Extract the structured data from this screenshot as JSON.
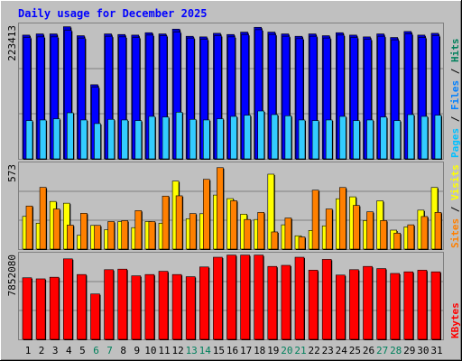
{
  "colors": {
    "background": "#c0c0c0",
    "panel_background": "#c0c0c0",
    "hits": "#00805c",
    "files": "#0080ff",
    "pages": "#00c0ff",
    "visits": "#ffff00",
    "sites": "#ff8000",
    "kbytes": "#ff0000",
    "hits_bar": "#0000ff",
    "files_bar": "#0000ff",
    "pages_bar": "#33ccff",
    "title": "#0000ff",
    "weekend_label": "#00805c",
    "weekday_label": "#000000"
  },
  "chart_data": [
    {
      "type": "bar",
      "title": "Daily usage for December 2025",
      "panel": "hits-files-pages",
      "ymax_label": "223413",
      "ylim": [
        0,
        223413
      ],
      "legend": {
        "pages": "Pages",
        "files": "Files",
        "hits": "Hits",
        "sep": "/"
      },
      "categories": [
        "1",
        "2",
        "3",
        "4",
        "5",
        "6",
        "7",
        "8",
        "9",
        "10",
        "11",
        "12",
        "13",
        "14",
        "15",
        "16",
        "17",
        "18",
        "19",
        "20",
        "21",
        "22",
        "23",
        "24",
        "25",
        "26",
        "27",
        "28",
        "29",
        "30",
        "31"
      ],
      "series": [
        {
          "name": "Hits",
          "values": [
            207000,
            209000,
            209000,
            221000,
            206000,
            124000,
            209000,
            208000,
            207000,
            211000,
            209000,
            217000,
            205000,
            204000,
            210000,
            208000,
            212000,
            220000,
            212000,
            209000,
            205000,
            209000,
            206000,
            211000,
            207000,
            204000,
            209000,
            203000,
            213000,
            207000,
            210000
          ]
        },
        {
          "name": "Files",
          "values": [
            203000,
            204000,
            204000,
            215000,
            202000,
            120000,
            205000,
            204000,
            203000,
            207000,
            206000,
            212000,
            202000,
            200000,
            206000,
            204000,
            208000,
            216000,
            208000,
            205000,
            201000,
            205000,
            202000,
            207000,
            203000,
            200000,
            205000,
            199000,
            209000,
            203000,
            206000
          ]
        },
        {
          "name": "Pages",
          "values": [
            64000,
            65000,
            67000,
            77000,
            65000,
            59000,
            66000,
            65000,
            64000,
            71000,
            70000,
            78000,
            66000,
            65000,
            67000,
            71000,
            73000,
            80000,
            74000,
            72000,
            65000,
            64000,
            65000,
            71000,
            64000,
            65000,
            70000,
            64000,
            74000,
            71000,
            73000
          ]
        }
      ]
    },
    {
      "type": "bar",
      "panel": "visits-sites",
      "ymax_label": "573",
      "ylim": [
        0,
        573
      ],
      "legend": {
        "sites": "Sites",
        "visits": "Visits",
        "sep": "/"
      },
      "categories": [
        "1",
        "2",
        "3",
        "4",
        "5",
        "6",
        "7",
        "8",
        "9",
        "10",
        "11",
        "12",
        "13",
        "14",
        "15",
        "16",
        "17",
        "18",
        "19",
        "20",
        "21",
        "22",
        "23",
        "24",
        "25",
        "26",
        "27",
        "28",
        "29",
        "30",
        "31"
      ],
      "series": [
        {
          "name": "Visits",
          "values": [
            221,
            175,
            322,
            310,
            93,
            160,
            131,
            186,
            145,
            186,
            175,
            459,
            205,
            239,
            365,
            341,
            236,
            200,
            506,
            164,
            90,
            126,
            157,
            340,
            353,
            193,
            326,
            128,
            150,
            263,
            416
          ]
        },
        {
          "name": "Sites",
          "values": [
            291,
            417,
            271,
            162,
            242,
            160,
            186,
            192,
            260,
            186,
            358,
            360,
            240,
            471,
            550,
            327,
            200,
            248,
            116,
            210,
            82,
            398,
            271,
            416,
            295,
            252,
            193,
            108,
            164,
            220,
            248
          ]
        }
      ]
    },
    {
      "type": "bar",
      "panel": "kbytes",
      "ymax_label": "7852080",
      "ylim": [
        0,
        7852080
      ],
      "legend": {
        "kbytes": "KBytes"
      },
      "categories": [
        "1",
        "2",
        "3",
        "4",
        "5",
        "6",
        "7",
        "8",
        "9",
        "10",
        "11",
        "12",
        "13",
        "14",
        "15",
        "16",
        "17",
        "18",
        "19",
        "20",
        "21",
        "22",
        "23",
        "24",
        "25",
        "26",
        "27",
        "28",
        "29",
        "30",
        "31"
      ],
      "series": [
        {
          "name": "KBytes",
          "values": [
            5700000,
            5600000,
            5750000,
            7450000,
            6000000,
            4200000,
            6450000,
            6500000,
            5880000,
            6000000,
            6300000,
            6000000,
            5800000,
            6700000,
            7600000,
            7800000,
            7800000,
            7800000,
            6750000,
            6850000,
            7600000,
            6400000,
            7400000,
            5950000,
            6450000,
            6750000,
            6550000,
            6100000,
            6250000,
            6400000,
            6250000
          ]
        }
      ]
    }
  ]
}
